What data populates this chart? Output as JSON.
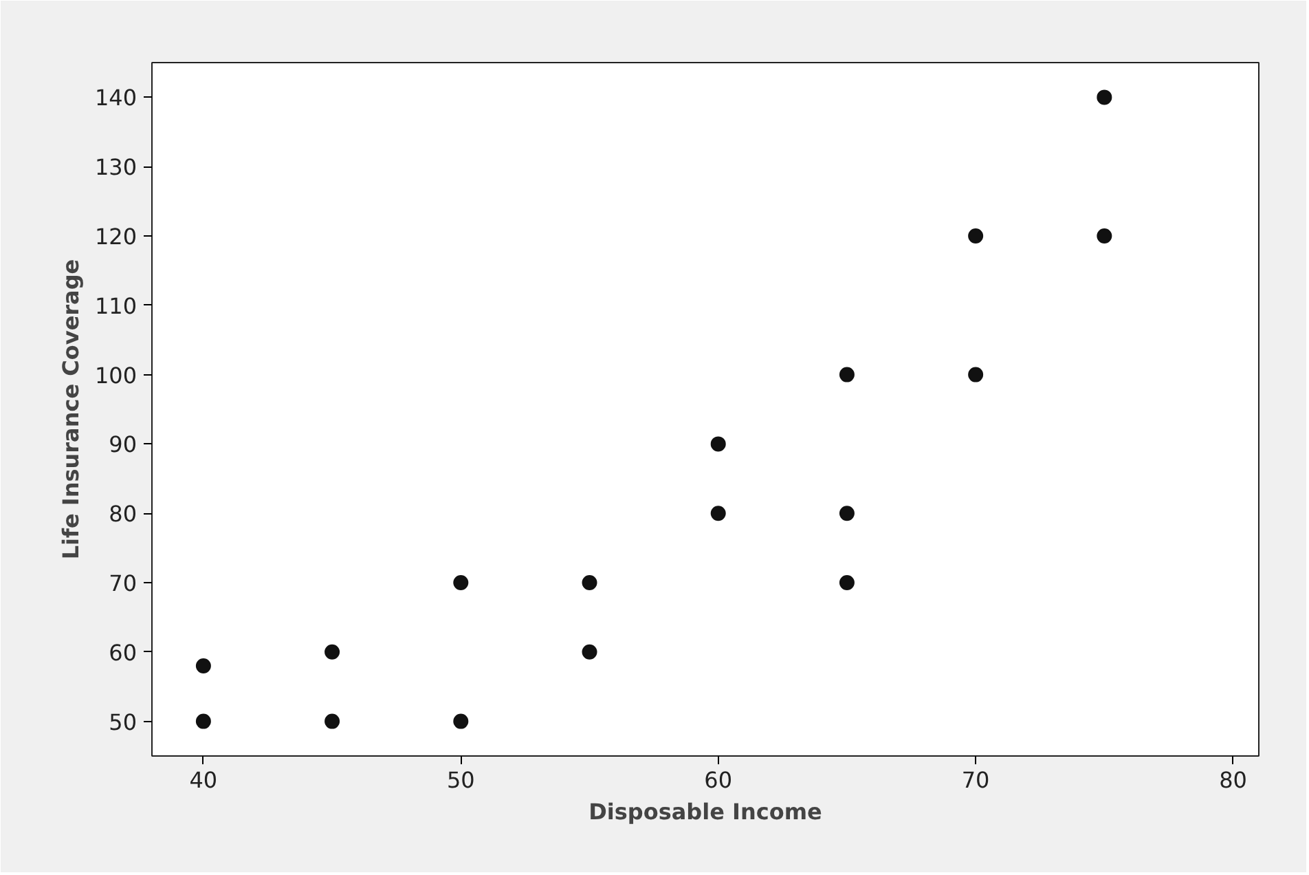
{
  "chart_data": {
    "type": "scatter",
    "xlabel": "Disposable Income",
    "ylabel": "Life Insurance Coverage",
    "x": [
      40,
      40,
      45,
      45,
      50,
      50,
      55,
      55,
      60,
      60,
      65,
      65,
      65,
      70,
      70,
      75,
      75
    ],
    "values": [
      50,
      58,
      50,
      60,
      50,
      70,
      60,
      70,
      80,
      90,
      70,
      80,
      100,
      100,
      120,
      120,
      140
    ],
    "color": "#111111",
    "marker": "circle",
    "xlim": [
      38,
      81
    ],
    "ylim": [
      45,
      145
    ],
    "xticks": [
      40,
      50,
      60,
      70,
      80
    ],
    "yticks": [
      50,
      60,
      70,
      80,
      90,
      100,
      110,
      120,
      130,
      140
    ],
    "grid": false
  }
}
